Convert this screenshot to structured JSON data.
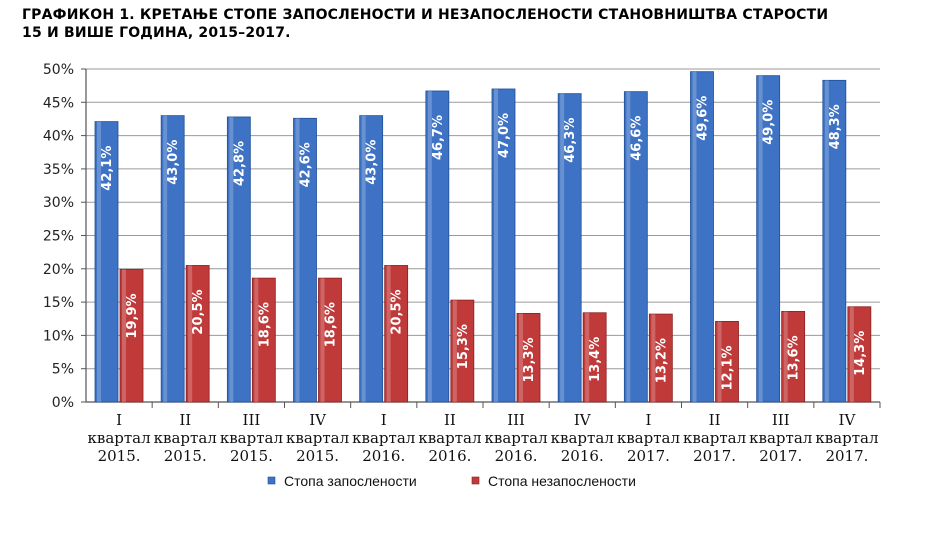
{
  "title_lines": [
    "ГРАФИКОН 1. КРЕТАЊЕ СТОПЕ ЗАПОСЛЕНОСТИ И НЕЗАПОСЛЕНОСТИ СТАНОВНИШТВА СТАРОСТИ",
    "15 И ВИШЕ ГОДИНА, 2015–2017."
  ],
  "chart_data": {
    "type": "bar",
    "title": "ГРАФИКОН 1. КРЕТАЊЕ СТОПЕ ЗАПОСЛЕНОСТИ И НЕЗАПОСЛЕНОСТИ СТАНОВНИШТВА СТАРОСТИ 15 И ВИШЕ ГОДИНА, 2015–2017.",
    "categories": [
      [
        "I",
        "квартал",
        "2015."
      ],
      [
        "II",
        "квартал",
        "2015."
      ],
      [
        "III",
        "квартал",
        "2015."
      ],
      [
        "IV",
        "квартал",
        "2015."
      ],
      [
        "I",
        "квартал",
        "2016."
      ],
      [
        "II",
        "квартал",
        "2016."
      ],
      [
        "III",
        "квартал",
        "2016."
      ],
      [
        "IV",
        "квартал",
        "2016."
      ],
      [
        "I",
        "квартал",
        "2017."
      ],
      [
        "II",
        "квартал",
        "2017."
      ],
      [
        "III",
        "квартал",
        "2017."
      ],
      [
        "IV",
        "квартал",
        "2017."
      ]
    ],
    "series": [
      {
        "name": "Стопа запослености",
        "color": "#3d72c4",
        "values": [
          42.1,
          43.0,
          42.8,
          42.6,
          43.0,
          46.7,
          47.0,
          46.3,
          46.6,
          49.6,
          49.0,
          48.3
        ],
        "labels": [
          "42,1%",
          "43,0%",
          "42,8%",
          "42,6%",
          "43,0%",
          "46,7%",
          "47,0%",
          "46,3%",
          "46,6%",
          "49,6%",
          "49,0%",
          "48,3%"
        ]
      },
      {
        "name": "Стопа незапослености",
        "color": "#c03a3a",
        "values": [
          19.9,
          20.5,
          18.6,
          18.6,
          20.5,
          15.3,
          13.3,
          13.4,
          13.2,
          12.1,
          13.6,
          14.3
        ],
        "labels": [
          "19,9%",
          "20,5%",
          "18,6%",
          "18,6%",
          "20,5%",
          "15,3%",
          "13,3%",
          "13,4%",
          "13,2%",
          "12,1%",
          "13,6%",
          "14,3%"
        ]
      }
    ],
    "y_ticks": [
      "0%",
      "5%",
      "10%",
      "15%",
      "20%",
      "25%",
      "30%",
      "35%",
      "40%",
      "45%",
      "50%"
    ],
    "ylim": [
      0,
      50
    ],
    "grid": true,
    "legend_position": "bottom-center"
  }
}
